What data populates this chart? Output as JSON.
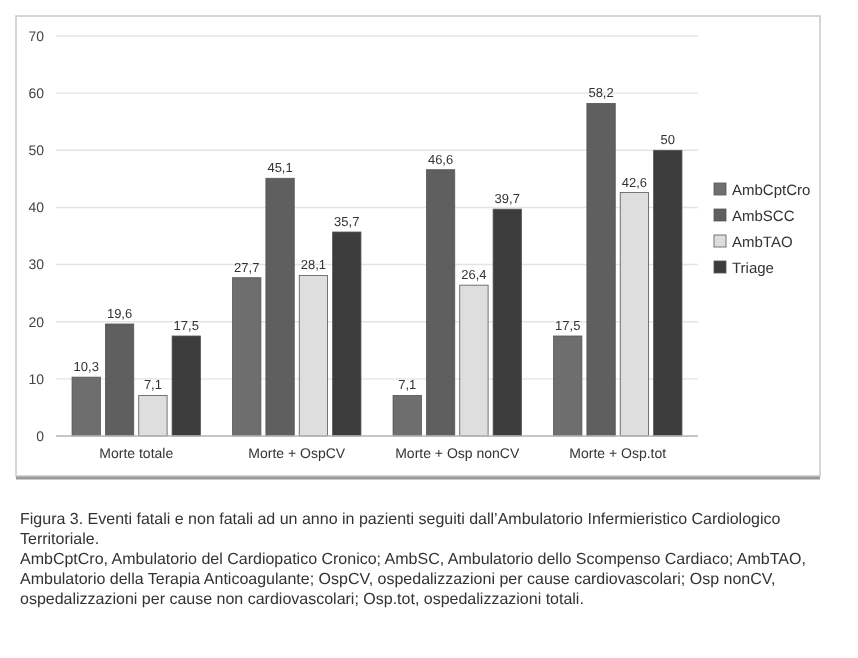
{
  "chart_data": {
    "type": "bar",
    "categories": [
      "Morte totale",
      "Morte + OspCV",
      "Morte + Osp nonCV",
      "Morte + Osp.tot"
    ],
    "series": [
      {
        "name": "AmbCptCro",
        "color": "#6e6e6e",
        "values": [
          10.3,
          27.7,
          7.1,
          17.5
        ],
        "value_labels": [
          "10,3",
          "27,7",
          "7,1",
          "17,5"
        ]
      },
      {
        "name": "AmbSCC",
        "color": "#5f5f5f",
        "values": [
          19.6,
          45.1,
          46.6,
          58.2
        ],
        "value_labels": [
          "19,6",
          "45,1",
          "46,6",
          "58,2"
        ]
      },
      {
        "name": "AmbTAO",
        "color": "#dedede",
        "values": [
          7.1,
          28.1,
          26.4,
          42.6
        ],
        "value_labels": [
          "7,1",
          "28,1",
          "26,4",
          "42,6"
        ]
      },
      {
        "name": "Triage",
        "color": "#3c3c3c",
        "values": [
          17.5,
          35.7,
          39.7,
          50
        ],
        "value_labels": [
          "17,5",
          "35,7",
          "39,7",
          "50"
        ]
      }
    ],
    "ylim": [
      0,
      70
    ],
    "yticks": [
      0,
      10,
      20,
      30,
      40,
      50,
      60,
      70
    ],
    "grid": "y",
    "legend": "right",
    "title": "Figura 3. Eventi fatali e non fatali ad un anno in pazienti seguiti dall’Ambulatorio Infermieristico Cardiologico Territoriale.",
    "annotations": [
      "AmbCptCro, Ambulatorio del Cardiopatico Cronico; AmbSC, Ambulatorio dello Scompenso Cardiaco; AmbTAO, Ambulatorio della Terapia Anticoagulante; OspCV, ospedalizzazioni per cause cardiovascolari; Osp nonCV, ospedalizzazioni per cause non cardiovascolari; Osp.tot, ospedalizzazioni totali."
    ]
  }
}
